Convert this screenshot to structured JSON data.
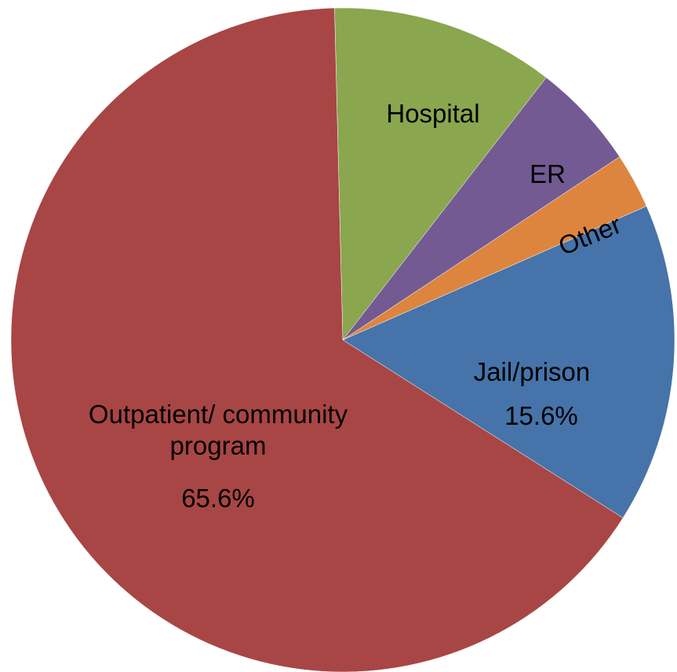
{
  "chart_data": {
    "type": "pie",
    "categories": [
      "Hospital",
      "ER",
      "Other",
      "Jail/prison",
      "Outpatient/ community program"
    ],
    "values": [
      10.9,
      5.2,
      2.7,
      15.6,
      65.6
    ],
    "value_labels": [
      null,
      null,
      null,
      "15.6%",
      "65.6%"
    ],
    "colors": [
      "#8aa64f",
      "#735a93",
      "#dd853f",
      "#4673a9",
      "#a84645"
    ]
  }
}
